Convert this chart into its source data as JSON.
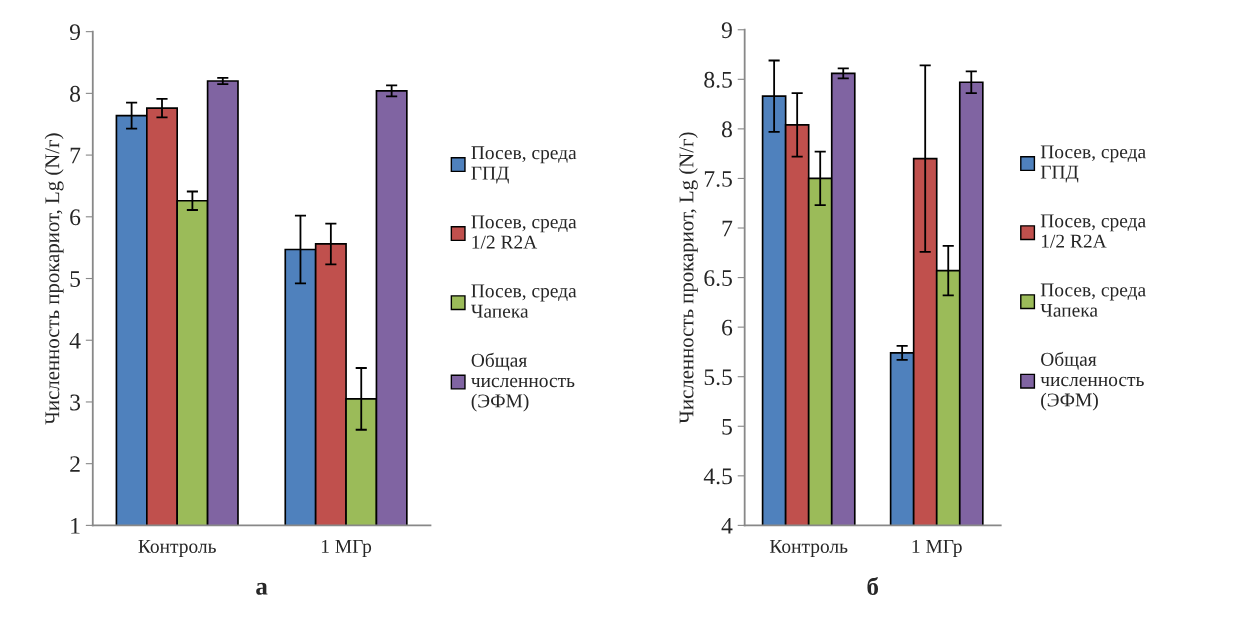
{
  "chart_data": [
    {
      "type": "bar",
      "ylabel": "Численность прокариот, Lg (N/г)",
      "categories": [
        "Контроль",
        "1 МГр"
      ],
      "ylim": [
        1,
        9
      ],
      "yticks": [
        1,
        2,
        3,
        4,
        5,
        6,
        7,
        8,
        9
      ],
      "grid": false,
      "legend": "right",
      "annotations": [
        "а"
      ],
      "series": [
        {
          "name": "Посев, среда\nГПД",
          "color": "#4f81bd",
          "values": [
            7.64,
            5.47
          ],
          "errors": [
            0.21,
            0.55
          ]
        },
        {
          "name": "Посев, среда\n1/2 R2A",
          "color": "#c0504d",
          "values": [
            7.76,
            5.56
          ],
          "errors": [
            0.15,
            0.33
          ]
        },
        {
          "name": "Посев, среда\nЧапека",
          "color": "#9bbb59",
          "values": [
            6.26,
            3.05
          ],
          "errors": [
            0.15,
            0.5
          ]
        },
        {
          "name": "Общая\nчисленность\n(ЭФМ)",
          "color": "#8064a2",
          "values": [
            8.2,
            8.04
          ],
          "errors": [
            0.05,
            0.09
          ]
        }
      ]
    },
    {
      "type": "bar",
      "ylabel": "Численность прокариот, Lg (N/г)",
      "categories": [
        "Контроль",
        "1 МГр"
      ],
      "ylim": [
        4,
        9
      ],
      "yticks": [
        4,
        4.5,
        5,
        5.5,
        6,
        6.5,
        7,
        7.5,
        8,
        8.5,
        9
      ],
      "grid": false,
      "legend": "right",
      "annotations": [
        "б"
      ],
      "series": [
        {
          "name": "Посев, среда\nГПД",
          "color": "#4f81bd",
          "values": [
            8.33,
            5.74
          ],
          "errors": [
            0.36,
            0.07
          ]
        },
        {
          "name": "Посев, среда\n1/2 R2A",
          "color": "#c0504d",
          "values": [
            8.04,
            7.7
          ],
          "errors": [
            0.32,
            0.94
          ]
        },
        {
          "name": "Посев, среда\nЧапека",
          "color": "#9bbb59",
          "values": [
            7.5,
            6.57
          ],
          "errors": [
            0.27,
            0.25
          ]
        },
        {
          "name": "Общая\nчисленность\n(ЭФМ)",
          "color": "#8064a2",
          "values": [
            8.56,
            8.47
          ],
          "errors": [
            0.05,
            0.11
          ]
        }
      ]
    }
  ]
}
